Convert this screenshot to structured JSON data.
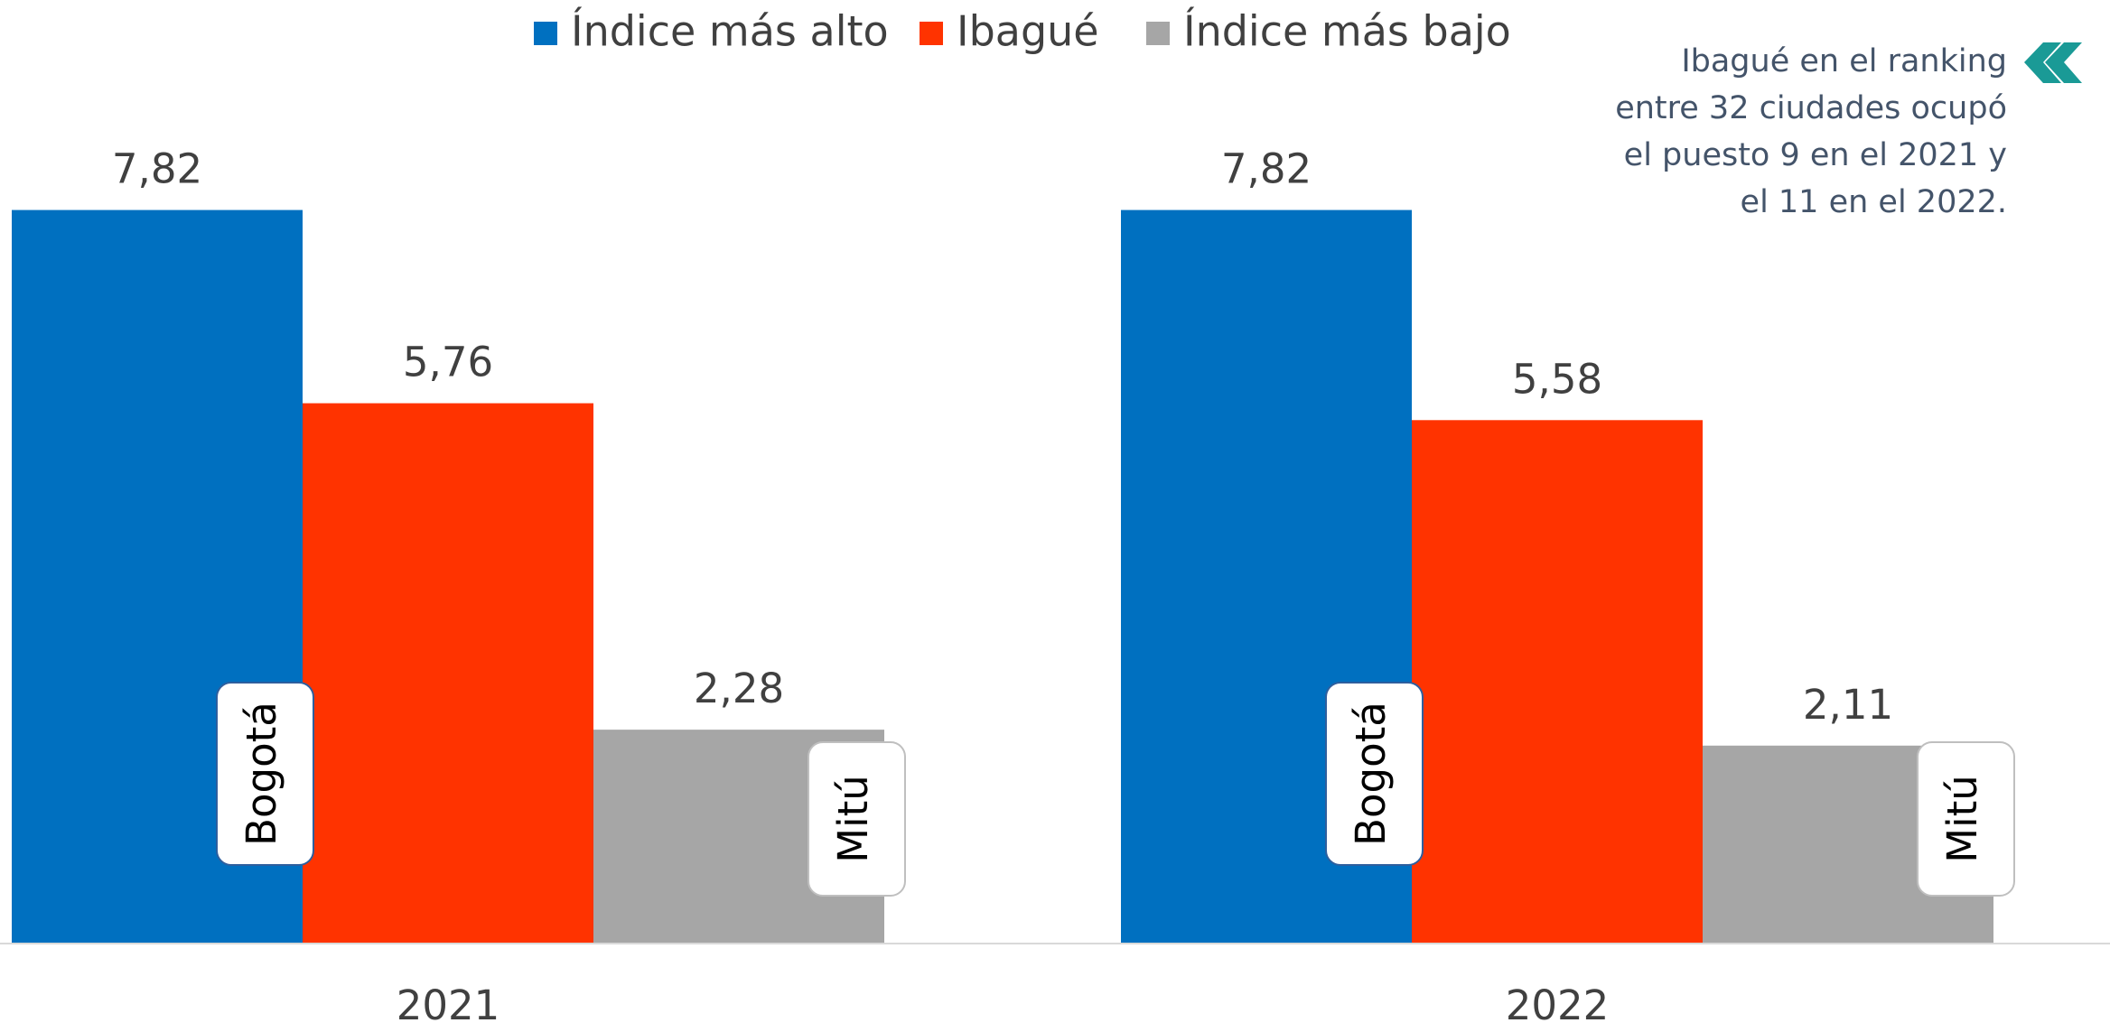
{
  "chart_data": {
    "type": "bar",
    "categories": [
      "2021",
      "2022"
    ],
    "series": [
      {
        "name": "Índice más alto",
        "color": "#0070c0",
        "values": [
          7.82,
          7.82
        ],
        "value_labels": [
          "7,82",
          "7,82"
        ],
        "labels": [
          "Bogotá",
          "Bogotá"
        ]
      },
      {
        "name": "Ibagué",
        "color": "#ff3300",
        "values": [
          5.76,
          5.58
        ],
        "value_labels": [
          "5,76",
          "5,58"
        ]
      },
      {
        "name": "Índice más bajo",
        "color": "#a6a6a6",
        "values": [
          2.28,
          2.11
        ],
        "value_labels": [
          "2,28",
          "2,11"
        ],
        "labels": [
          "Mitú",
          "Mitú"
        ]
      }
    ],
    "ylim": [
      0,
      9
    ],
    "annotation": [
      "Ibagué en el ranking",
      "entre 32 ciudades ocupó",
      "el puesto 9 en el 2021 y",
      "el 11 en el 2022."
    ],
    "legend": "top"
  }
}
